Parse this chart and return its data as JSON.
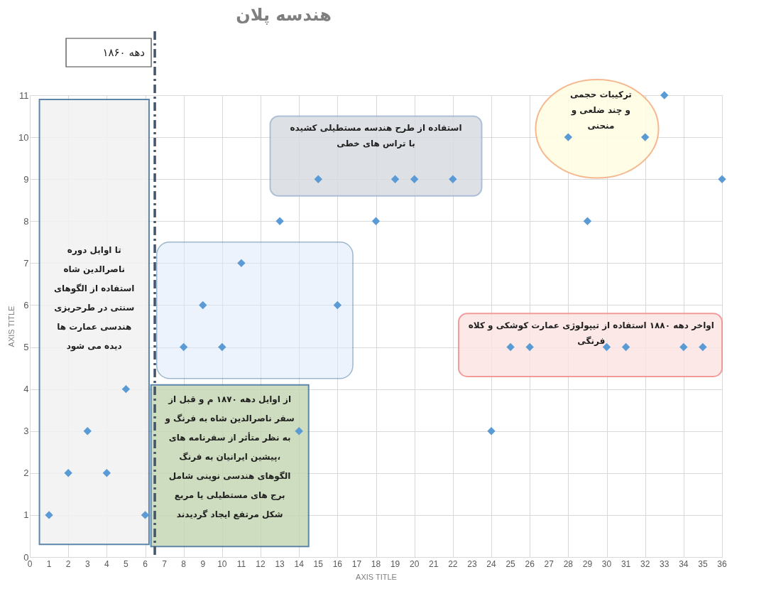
{
  "chart_data": {
    "type": "scatter",
    "title": "هندسه پلان",
    "xlabel": "AXIS TITLE",
    "ylabel": "AXIS TITLE",
    "x": [
      1,
      2,
      3,
      4,
      5,
      6,
      8,
      9,
      10,
      11,
      13,
      14,
      15,
      16,
      18,
      19,
      20,
      22,
      24,
      25,
      26,
      28,
      29,
      30,
      31,
      32,
      33,
      34,
      35,
      36
    ],
    "series": [
      {
        "color": "#5b9bd5",
        "values": [
          1,
          2,
          3,
          2,
          4,
          1,
          5,
          6,
          5,
          7,
          8,
          3,
          9,
          6,
          8,
          9,
          9,
          9,
          3,
          5,
          5,
          10,
          8,
          5,
          5,
          10,
          11,
          5,
          5,
          9
        ]
      }
    ],
    "xlim": [
      0,
      36
    ],
    "xticks": [
      0,
      1,
      2,
      3,
      4,
      5,
      6,
      7,
      8,
      9,
      10,
      11,
      12,
      13,
      14,
      15,
      16,
      17,
      18,
      19,
      20,
      21,
      22,
      23,
      24,
      25,
      26,
      27,
      28,
      29,
      30,
      31,
      32,
      33,
      34,
      35,
      36
    ],
    "ylim": [
      0,
      11
    ],
    "yticks": [
      0,
      1,
      2,
      3,
      4,
      5,
      6,
      7,
      8,
      9,
      10,
      11
    ],
    "grid": true,
    "marker": "diamond",
    "ref_lines": [
      {
        "axis": "x",
        "value": 6.5,
        "label": "دهه ۱۸۶۰",
        "color": "#44546a",
        "line_style": "dashdot"
      }
    ],
    "annotations": [
      "تا اوایل دوره\nناصرالدین شاه\nاستفاده از الگوهای\nسنتی در طرحریزی\nهندسی عمارت ها\nدیده می شود",
      "از اوایل دهه ۱۸۷۰ م و قبل از\nسفر ناصرالدین شاه به فرنگ و\nبه نظر متأثر از سفرنامه های\nپیشین ایرانیان به فرنگ،\nالگوهای هندسی نوینی شامل\nبرج های مستطیلی یا مربع\nشکل مرتفع ایجاد گردیدند",
      "استفاده از طرح هندسه مستطیلی کشیده\nبا تراس های خطی",
      "ترکیبات حجمی\nو چند ضلعی و\nمنحنی",
      "اواخر دهه ۱۸۸۰ استفاده از تیپولوژی عمارت کوشکی و کلاه\nفرنگی"
    ]
  }
}
